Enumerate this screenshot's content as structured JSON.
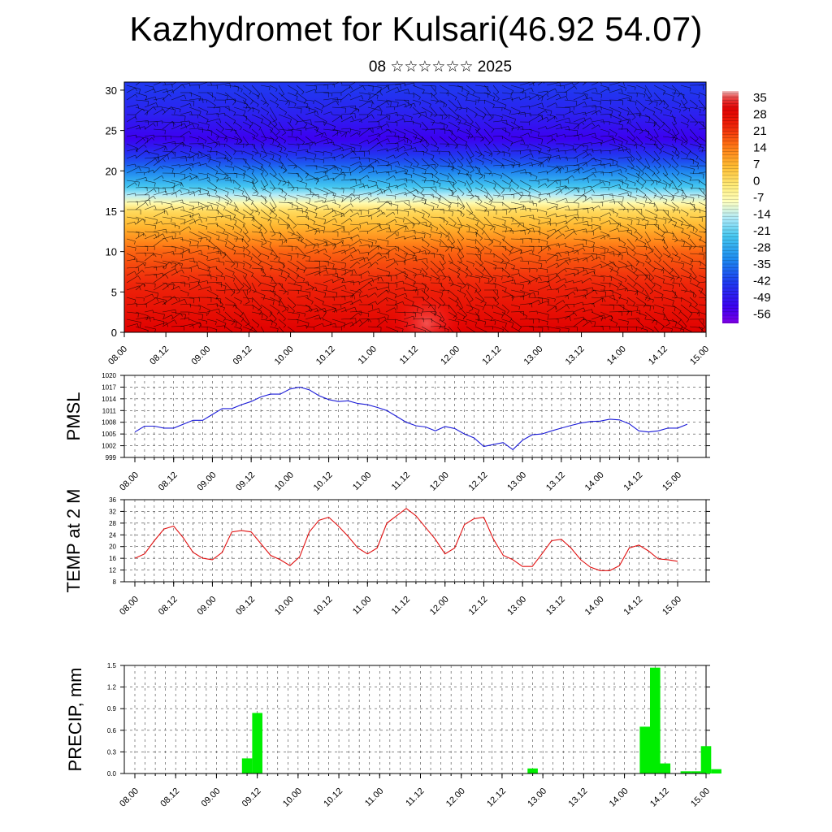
{
  "title": "Kazhydromet for Kulsari(46.92 54.07)",
  "subtitle": "08 ☆☆☆☆☆☆ 2025",
  "colors": {
    "pmsl_line": "#1a1ad8",
    "temp_line": "#e01010",
    "precip_bar": "#00ee00",
    "grid": "#333333"
  },
  "chart_data": [
    {
      "id": "cross-section",
      "type": "heatmap",
      "title": "",
      "xlabel": "",
      "ylabel": "",
      "x_ticks": [
        "08.00",
        "08.12",
        "09.00",
        "09.12",
        "10.00",
        "10.12",
        "11.00",
        "11.12",
        "12.00",
        "12.12",
        "13.00",
        "13.12",
        "14.00",
        "14.12",
        "15.00"
      ],
      "y_ticks": [
        0,
        5,
        10,
        15,
        20,
        25,
        30
      ],
      "ylim": [
        0,
        31
      ],
      "colorbar": {
        "labels": [
          "35",
          "28",
          "21",
          "14",
          "7",
          "0",
          "-7",
          "-14",
          "-21",
          "-28",
          "-35",
          "-42",
          "-49",
          "-56"
        ],
        "range": [
          -63,
          38
        ]
      },
      "temperature_by_height": [
        [
          0,
          30
        ],
        [
          5,
          24
        ],
        [
          10,
          16
        ],
        [
          15,
          0
        ],
        [
          18,
          -25
        ],
        [
          21,
          -42
        ],
        [
          24,
          -56
        ],
        [
          27,
          -50
        ],
        [
          30,
          -46
        ]
      ],
      "wind_barbs": true
    },
    {
      "id": "pmsl",
      "type": "line",
      "ylabel": "PMSL",
      "x_ticks": [
        "08.00",
        "08.12",
        "09.00",
        "09.12",
        "10.00",
        "10.12",
        "11.00",
        "11.12",
        "12.00",
        "12.12",
        "13.00",
        "13.12",
        "14.00",
        "14.12",
        "15.00"
      ],
      "y_ticks": [
        "1020",
        "1017",
        "1014",
        "1011",
        "1008",
        "1005",
        "1002",
        "999"
      ],
      "ylim": [
        999,
        1020
      ],
      "step_hours": 3,
      "values": [
        1005.5,
        1007,
        1007,
        1006.5,
        1006.5,
        1007.5,
        1008.5,
        1008.5,
        1010,
        1011.5,
        1011.5,
        1012.5,
        1013.3,
        1014.5,
        1015.2,
        1015.2,
        1016.5,
        1017,
        1016.3,
        1014.8,
        1013.8,
        1013.3,
        1013.5,
        1012.8,
        1012.5,
        1011.8,
        1011,
        1009.5,
        1008,
        1007.1,
        1006.8,
        1005.8,
        1006.9,
        1006.4,
        1005,
        1004,
        1001.8,
        1002.3,
        1002.8,
        1001,
        1003.4,
        1004.8,
        1005,
        1005.8,
        1006.5,
        1007.2,
        1007.8,
        1008.2,
        1008.3,
        1008.8,
        1008.6,
        1007.6,
        1005.8,
        1005.5,
        1005.8,
        1006.5,
        1006.5,
        1007.5
      ]
    },
    {
      "id": "temp2m",
      "type": "line",
      "ylabel": "TEMP at 2 M",
      "x_ticks": [
        "08.00",
        "08.12",
        "09.00",
        "09.12",
        "10.00",
        "10.12",
        "11.00",
        "11.12",
        "12.00",
        "12.12",
        "13.00",
        "13.12",
        "14.00",
        "14.12",
        "15.00"
      ],
      "y_ticks": [
        "36",
        "32",
        "28",
        "24",
        "20",
        "16",
        "12",
        "8"
      ],
      "ylim": [
        8,
        36
      ],
      "step_hours": 3,
      "values": [
        16,
        17.5,
        22,
        26,
        27,
        23,
        18,
        16,
        15.5,
        18,
        25,
        25.5,
        25,
        21,
        17,
        15.5,
        13.5,
        16.5,
        25,
        29,
        30,
        27,
        23.5,
        19.5,
        17.5,
        19.5,
        28,
        30.5,
        33,
        30.5,
        26.5,
        22.5,
        17.5,
        19.5,
        27.5,
        29.5,
        30,
        22.5,
        17,
        15.5,
        13.2,
        13.2,
        17.5,
        22,
        22.5,
        19.5,
        15.5,
        13,
        11.8,
        11.8,
        13.5,
        19.5,
        20.5,
        18.5,
        15.8,
        15.5,
        15
      ]
    },
    {
      "id": "precip",
      "type": "bar",
      "ylabel": "PRECIP, mm",
      "x_ticks": [
        "08.00",
        "08.12",
        "09.00",
        "09.12",
        "10.00",
        "10.12",
        "11.00",
        "11.12",
        "12.00",
        "12.12",
        "13.00",
        "13.12",
        "14.00",
        "14.12",
        "15.00"
      ],
      "y_ticks": [
        "1.5",
        "1.2",
        "0.9",
        "0.6",
        "0.3",
        "0.0"
      ],
      "ylim": [
        0,
        1.5
      ],
      "bars": [
        {
          "time_hours": 33,
          "value": 0.21
        },
        {
          "time_hours": 36,
          "value": 0.84
        },
        {
          "time_hours": 117,
          "value": 0.07
        },
        {
          "time_hours": 150,
          "value": 0.65
        },
        {
          "time_hours": 153,
          "value": 1.47
        },
        {
          "time_hours": 156,
          "value": 0.14
        },
        {
          "time_hours": 162,
          "value": 0.03
        },
        {
          "time_hours": 165,
          "value": 0.03
        },
        {
          "time_hours": 168,
          "value": 0.38
        },
        {
          "time_hours": 171,
          "value": 0.06
        }
      ]
    }
  ]
}
